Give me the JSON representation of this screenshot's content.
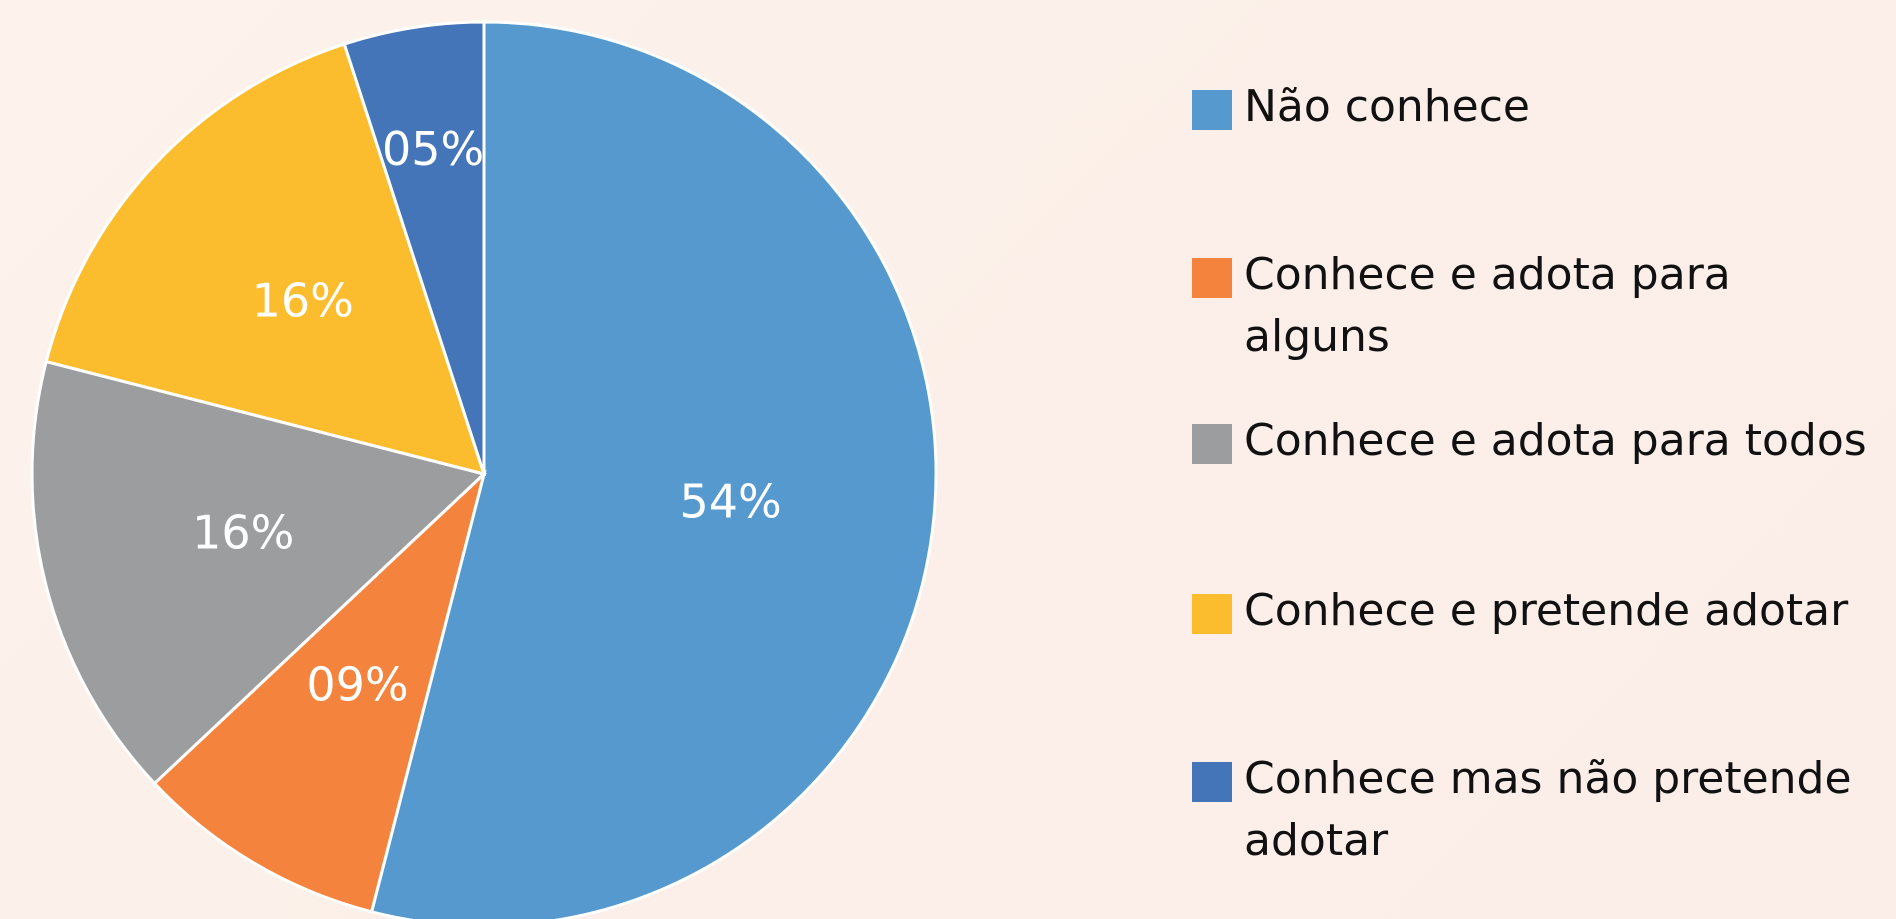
{
  "chart_data": {
    "type": "pie",
    "categories": [
      "Não conhece",
      "Conhece e adota para alguns",
      "Conhece e adota para todos",
      "Conhece e pretende adotar",
      "Conhece mas não pretende adotar"
    ],
    "values": [
      54,
      9,
      16,
      16,
      5
    ],
    "value_labels": [
      "54%",
      "09%",
      "16%",
      "16%",
      "05%"
    ],
    "colors": [
      "#5599cf",
      "#f4843d",
      "#9b9d9e",
      "#fbbd2e",
      "#4475b8"
    ],
    "legend": "right"
  }
}
